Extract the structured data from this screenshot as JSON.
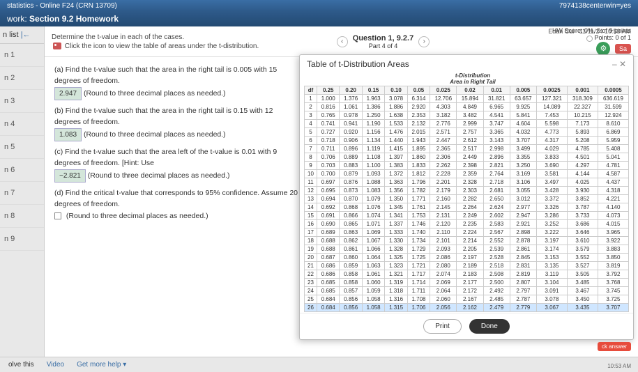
{
  "topbar": {
    "text": "statistics - Online F24 (CRN 13709)",
    "url_fragment": "7974138centerwin=yes"
  },
  "workbar": {
    "label": "work:",
    "title": "Section 9.2 Homework"
  },
  "sidebar": {
    "header": "n list",
    "collapse_icon": "|←",
    "items": [
      "n 1",
      "n 2",
      "n 3",
      "n 4",
      "n 5",
      "n 6",
      "n 7",
      "n 8",
      "n 9"
    ]
  },
  "qheader": {
    "determine": "Determine the t-value in each of the cases.",
    "clickicon": "Click the icon to view the table of areas under the t-distribution.",
    "qtitle": "Question 1, 9.2.7",
    "qpart": "Part 4 of 4",
    "prev": "‹",
    "next": "›",
    "score": "HW Score: 0%, 0 of 9 points",
    "points": "Points: 0 of 1",
    "save": "Sa",
    "user": "Edan Cui",
    "date": "11/11/24 10:53 AM"
  },
  "question": {
    "a_text1": "(a) Find the t-value such that the area in the right tail is 0.005 with 15 degrees of freedom.",
    "a_ans": "2.947",
    "a_text2": "(Round to three decimal places as needed.)",
    "b_text1": "(b) Find the t-value such that the area in the right tail is 0.15 with 12 degrees of freedom.",
    "b_ans": "1.083",
    "b_text2": "(Round to three decimal places as needed.)",
    "c_text1": "(c) Find the t-value such that the area left of the t-value is 0.01 with 9 degrees of freedom. [Hint: Use",
    "c_ans": "−2.821",
    "c_text2": "(Round to three decimal places as needed.)",
    "d_text1": "(d) Find the critical t-value that corresponds to 95% confidence. Assume 20 degrees of freedom.",
    "d_text2": "(Round to three decimal places as needed.)"
  },
  "modal": {
    "title": "Table of t-Distribution Areas",
    "suphead1": "t-Distribution",
    "suphead2": "Area in Right Tail",
    "headers": [
      "df",
      "0.25",
      "0.20",
      "0.15",
      "0.10",
      "0.05",
      "0.025",
      "0.02",
      "0.01",
      "0.005",
      "0.0025",
      "0.001",
      "0.0005"
    ],
    "rows": [
      [
        "1",
        "1.000",
        "1.376",
        "1.963",
        "3.078",
        "6.314",
        "12.706",
        "15.894",
        "31.821",
        "63.657",
        "127.321",
        "318.309",
        "636.619"
      ],
      [
        "2",
        "0.816",
        "1.061",
        "1.386",
        "1.886",
        "2.920",
        "4.303",
        "4.849",
        "6.965",
        "9.925",
        "14.089",
        "22.327",
        "31.599"
      ],
      [
        "3",
        "0.765",
        "0.978",
        "1.250",
        "1.638",
        "2.353",
        "3.182",
        "3.482",
        "4.541",
        "5.841",
        "7.453",
        "10.215",
        "12.924"
      ],
      [
        "4",
        "0.741",
        "0.941",
        "1.190",
        "1.533",
        "2.132",
        "2.776",
        "2.999",
        "3.747",
        "4.604",
        "5.598",
        "7.173",
        "8.610"
      ],
      [
        "5",
        "0.727",
        "0.920",
        "1.156",
        "1.476",
        "2.015",
        "2.571",
        "2.757",
        "3.365",
        "4.032",
        "4.773",
        "5.893",
        "6.869"
      ],
      [
        "6",
        "0.718",
        "0.906",
        "1.134",
        "1.440",
        "1.943",
        "2.447",
        "2.612",
        "3.143",
        "3.707",
        "4.317",
        "5.208",
        "5.959"
      ],
      [
        "7",
        "0.711",
        "0.896",
        "1.119",
        "1.415",
        "1.895",
        "2.365",
        "2.517",
        "2.998",
        "3.499",
        "4.029",
        "4.785",
        "5.408"
      ],
      [
        "8",
        "0.706",
        "0.889",
        "1.108",
        "1.397",
        "1.860",
        "2.306",
        "2.449",
        "2.896",
        "3.355",
        "3.833",
        "4.501",
        "5.041"
      ],
      [
        "9",
        "0.703",
        "0.883",
        "1.100",
        "1.383",
        "1.833",
        "2.262",
        "2.398",
        "2.821",
        "3.250",
        "3.690",
        "4.297",
        "4.781"
      ],
      [
        "10",
        "0.700",
        "0.879",
        "1.093",
        "1.372",
        "1.812",
        "2.228",
        "2.359",
        "2.764",
        "3.169",
        "3.581",
        "4.144",
        "4.587"
      ],
      [
        "11",
        "0.697",
        "0.876",
        "1.088",
        "1.363",
        "1.796",
        "2.201",
        "2.328",
        "2.718",
        "3.106",
        "3.497",
        "4.025",
        "4.437"
      ],
      [
        "12",
        "0.695",
        "0.873",
        "1.083",
        "1.356",
        "1.782",
        "2.179",
        "2.303",
        "2.681",
        "3.055",
        "3.428",
        "3.930",
        "4.318"
      ],
      [
        "13",
        "0.694",
        "0.870",
        "1.079",
        "1.350",
        "1.771",
        "2.160",
        "2.282",
        "2.650",
        "3.012",
        "3.372",
        "3.852",
        "4.221"
      ],
      [
        "14",
        "0.692",
        "0.868",
        "1.076",
        "1.345",
        "1.761",
        "2.145",
        "2.264",
        "2.624",
        "2.977",
        "3.326",
        "3.787",
        "4.140"
      ],
      [
        "15",
        "0.691",
        "0.866",
        "1.074",
        "1.341",
        "1.753",
        "2.131",
        "2.249",
        "2.602",
        "2.947",
        "3.286",
        "3.733",
        "4.073"
      ],
      [
        "16",
        "0.690",
        "0.865",
        "1.071",
        "1.337",
        "1.746",
        "2.120",
        "2.235",
        "2.583",
        "2.921",
        "3.252",
        "3.686",
        "4.015"
      ],
      [
        "17",
        "0.689",
        "0.863",
        "1.069",
        "1.333",
        "1.740",
        "2.110",
        "2.224",
        "2.567",
        "2.898",
        "3.222",
        "3.646",
        "3.965"
      ],
      [
        "18",
        "0.688",
        "0.862",
        "1.067",
        "1.330",
        "1.734",
        "2.101",
        "2.214",
        "2.552",
        "2.878",
        "3.197",
        "3.610",
        "3.922"
      ],
      [
        "19",
        "0.688",
        "0.861",
        "1.066",
        "1.328",
        "1.729",
        "2.093",
        "2.205",
        "2.539",
        "2.861",
        "3.174",
        "3.579",
        "3.883"
      ],
      [
        "20",
        "0.687",
        "0.860",
        "1.064",
        "1.325",
        "1.725",
        "2.086",
        "2.197",
        "2.528",
        "2.845",
        "3.153",
        "3.552",
        "3.850"
      ],
      [
        "21",
        "0.686",
        "0.859",
        "1.063",
        "1.323",
        "1.721",
        "2.080",
        "2.189",
        "2.518",
        "2.831",
        "3.135",
        "3.527",
        "3.819"
      ],
      [
        "22",
        "0.686",
        "0.858",
        "1.061",
        "1.321",
        "1.717",
        "2.074",
        "2.183",
        "2.508",
        "2.819",
        "3.119",
        "3.505",
        "3.792"
      ],
      [
        "23",
        "0.685",
        "0.858",
        "1.060",
        "1.319",
        "1.714",
        "2.069",
        "2.177",
        "2.500",
        "2.807",
        "3.104",
        "3.485",
        "3.768"
      ],
      [
        "24",
        "0.685",
        "0.857",
        "1.059",
        "1.318",
        "1.711",
        "2.064",
        "2.172",
        "2.492",
        "2.797",
        "3.091",
        "3.467",
        "3.745"
      ],
      [
        "25",
        "0.684",
        "0.856",
        "1.058",
        "1.316",
        "1.708",
        "2.060",
        "2.167",
        "2.485",
        "2.787",
        "3.078",
        "3.450",
        "3.725"
      ],
      [
        "26",
        "0.684",
        "0.856",
        "1.058",
        "1.315",
        "1.706",
        "2.056",
        "2.162",
        "2.479",
        "2.779",
        "3.067",
        "3.435",
        "3.707"
      ]
    ],
    "group_breaks": [
      5,
      10,
      15,
      20,
      25
    ],
    "highlight_row": 25,
    "print": "Print",
    "done": "Done",
    "close": "– ✕"
  },
  "footer": {
    "solve": "olve this",
    "video": "Video",
    "help": "Get more help ▾"
  },
  "badge": "ck answer",
  "clock": "10:53 AM"
}
